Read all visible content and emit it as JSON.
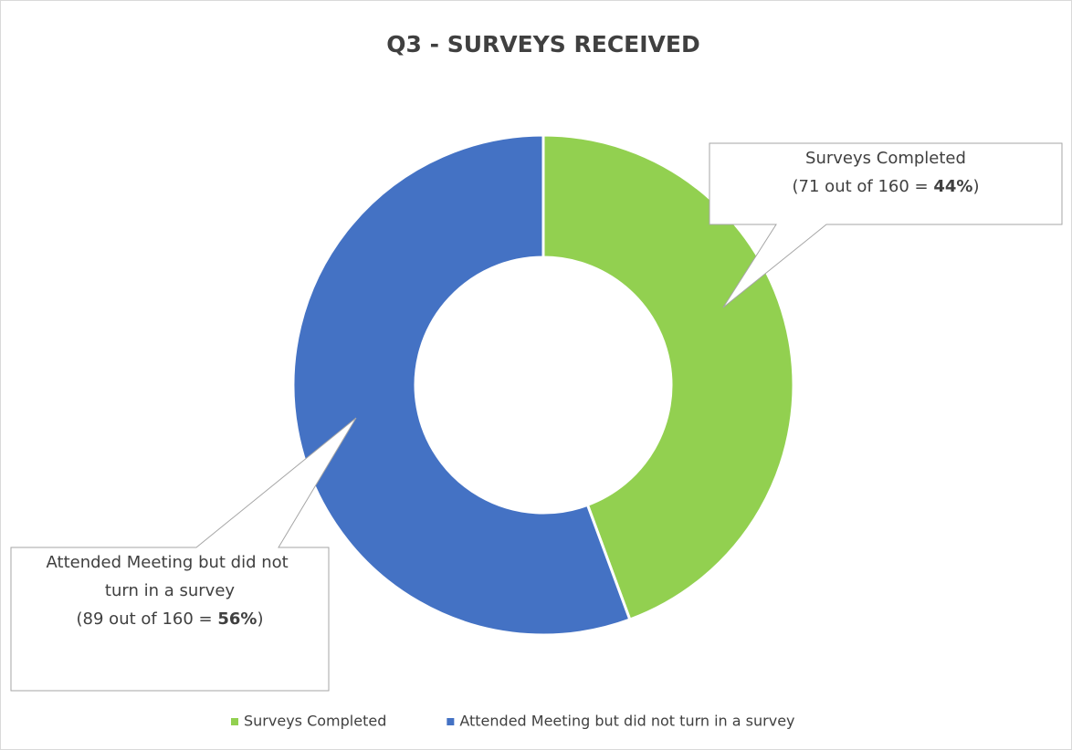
{
  "chart_data": {
    "type": "donut",
    "title": "Q3 - SURVEYS RECEIVED",
    "categories": [
      "Surveys Completed",
      "Attended Meeting but did not turn in a survey"
    ],
    "values": [
      71,
      89
    ],
    "value_labels": [
      "(71 out of 160 = 44%)",
      "(89 out of 160 = 56%)"
    ],
    "colors": [
      "#92d050",
      "#4472c4"
    ],
    "legend": "bottom"
  }
}
